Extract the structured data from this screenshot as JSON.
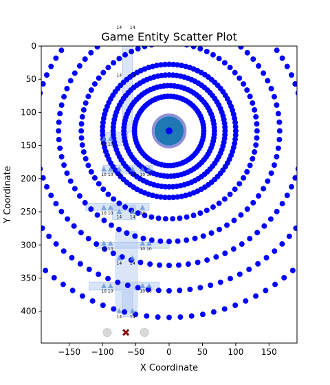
{
  "chart_data": {
    "type": "scatter",
    "title": "Game Entity Scatter Plot",
    "xlabel": "X Coordinate",
    "ylabel": "Y Coordinate",
    "xlim": [
      -192,
      192
    ],
    "ylim": [
      448,
      0
    ],
    "y_inverted": true,
    "grid": false,
    "x_ticks": [
      -150,
      -100,
      -50,
      0,
      50,
      100,
      150
    ],
    "y_ticks": [
      0,
      50,
      100,
      150,
      200,
      250,
      300,
      350,
      400
    ],
    "colors": {
      "dots": "#0000ff",
      "center_fill": "#1f77b4",
      "center_ring": "#8f8fd8",
      "highlight": "#aec6f0",
      "triangle": "#5b8fd4",
      "cross": "#8b0000",
      "grey": "#d9d9d9"
    },
    "center": {
      "x": 0,
      "y": 128
    },
    "center_marker_radius": 22,
    "rings": [
      {
        "radius": 52,
        "count": 70
      },
      {
        "radius": 68,
        "count": 82
      },
      {
        "radius": 84,
        "count": 92
      },
      {
        "radius": 100,
        "count": 100
      },
      {
        "radius": 132,
        "count": 78
      },
      {
        "radius": 166,
        "count": 80
      },
      {
        "radius": 202,
        "count": 88
      },
      {
        "radius": 240,
        "count": 96
      },
      {
        "radius": 280,
        "count": 104
      }
    ],
    "highlight_bands": [
      {
        "x1": -70,
        "x2": -55,
        "y1": 0,
        "y2": 130
      },
      {
        "x1": -100,
        "x2": -62,
        "y1": 130,
        "y2": 150
      },
      {
        "x1": -100,
        "x2": -25,
        "y1": 180,
        "y2": 192
      },
      {
        "x1": -125,
        "x2": -30,
        "y1": 237,
        "y2": 248
      },
      {
        "x1": -85,
        "x2": -50,
        "y1": 240,
        "y2": 262
      },
      {
        "x1": -110,
        "x2": 0,
        "y1": 296,
        "y2": 305
      },
      {
        "x1": -80,
        "x2": -48,
        "y1": 280,
        "y2": 400
      },
      {
        "x1": -120,
        "x2": -15,
        "y1": 356,
        "y2": 368
      },
      {
        "x1": -70,
        "x2": -55,
        "y1": 370,
        "y2": 408
      }
    ],
    "triangles": [
      {
        "x": -98,
        "y": 140
      },
      {
        "x": -88,
        "y": 140
      },
      {
        "x": -98,
        "y": 186
      },
      {
        "x": -88,
        "y": 186
      },
      {
        "x": -75,
        "y": 186
      },
      {
        "x": -55,
        "y": 186
      },
      {
        "x": -40,
        "y": 186
      },
      {
        "x": -30,
        "y": 186
      },
      {
        "x": -98,
        "y": 244
      },
      {
        "x": -88,
        "y": 244
      },
      {
        "x": -75,
        "y": 250
      },
      {
        "x": -55,
        "y": 250
      },
      {
        "x": -40,
        "y": 244
      },
      {
        "x": -98,
        "y": 298
      },
      {
        "x": -88,
        "y": 298
      },
      {
        "x": -40,
        "y": 298
      },
      {
        "x": -30,
        "y": 298
      },
      {
        "x": -75,
        "y": 320
      },
      {
        "x": -55,
        "y": 320
      },
      {
        "x": -98,
        "y": 362
      },
      {
        "x": -88,
        "y": 362
      },
      {
        "x": -40,
        "y": 362
      },
      {
        "x": -30,
        "y": 362
      },
      {
        "x": -75,
        "y": 400
      },
      {
        "x": -55,
        "y": 400
      }
    ],
    "labels": [
      {
        "x": -75,
        "y": -26,
        "text": "14"
      },
      {
        "x": -55,
        "y": -26,
        "text": "14"
      },
      {
        "x": -75,
        "y": 46,
        "text": "14"
      },
      {
        "x": -55,
        "y": 46,
        "text": "14"
      },
      {
        "x": -98,
        "y": 150,
        "text": "10"
      },
      {
        "x": -88,
        "y": 150,
        "text": "10"
      },
      {
        "x": -98,
        "y": 196,
        "text": "10"
      },
      {
        "x": -88,
        "y": 196,
        "text": "10"
      },
      {
        "x": -75,
        "y": 196,
        "text": "14"
      },
      {
        "x": -55,
        "y": 196,
        "text": "14"
      },
      {
        "x": -40,
        "y": 196,
        "text": "10"
      },
      {
        "x": -30,
        "y": 196,
        "text": "10"
      },
      {
        "x": -98,
        "y": 254,
        "text": "10"
      },
      {
        "x": -88,
        "y": 254,
        "text": "10"
      },
      {
        "x": -75,
        "y": 260,
        "text": "14"
      },
      {
        "x": -55,
        "y": 260,
        "text": "14"
      },
      {
        "x": -40,
        "y": 254,
        "text": "10"
      },
      {
        "x": -98,
        "y": 308,
        "text": "10"
      },
      {
        "x": -88,
        "y": 308,
        "text": "10"
      },
      {
        "x": -40,
        "y": 308,
        "text": "10"
      },
      {
        "x": -30,
        "y": 308,
        "text": "10"
      },
      {
        "x": -75,
        "y": 330,
        "text": "14"
      },
      {
        "x": -55,
        "y": 330,
        "text": "14"
      },
      {
        "x": -98,
        "y": 372,
        "text": "10"
      },
      {
        "x": -88,
        "y": 372,
        "text": "10"
      },
      {
        "x": -40,
        "y": 372,
        "text": "10"
      },
      {
        "x": -30,
        "y": 372,
        "text": "10"
      },
      {
        "x": -75,
        "y": 410,
        "text": "14"
      },
      {
        "x": -55,
        "y": 410,
        "text": "14"
      }
    ],
    "grey_points": [
      {
        "x": -93,
        "y": 432
      },
      {
        "x": -37,
        "y": 432
      }
    ],
    "cross_point": {
      "x": -65,
      "y": 432
    }
  }
}
